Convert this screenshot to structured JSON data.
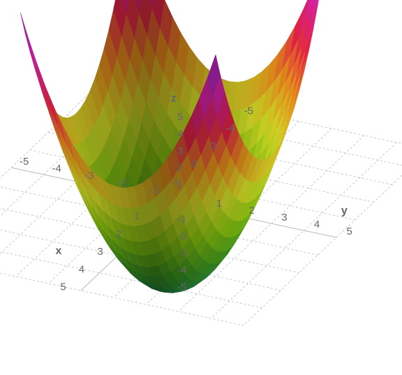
{
  "chart_data": {
    "type": "surface",
    "axis_labels": {
      "x": "x",
      "y": "y",
      "z": "z"
    },
    "x_ticks": [
      "-5",
      "-4",
      "-3",
      "-2",
      "-1",
      "1",
      "2",
      "3",
      "4",
      "5"
    ],
    "y_ticks": [
      "-5",
      "-4",
      "-3",
      "-2",
      "-1",
      "1",
      "2",
      "3",
      "4",
      "5"
    ],
    "z_ticks": [
      "-5",
      "-4",
      "-3",
      "-2",
      "-1",
      "1",
      "2",
      "3",
      "4",
      "5"
    ],
    "xlim": [
      -5,
      5
    ],
    "ylim": [
      -5,
      5
    ],
    "zlim": [
      -5,
      5
    ],
    "surface_domain": {
      "x": [
        -3,
        3
      ],
      "y": [
        -3,
        3
      ]
    },
    "grid": true,
    "colorscale": [
      "#1a7a48",
      "#3e9a1e",
      "#8ed010",
      "#e6ee2a",
      "#ff9c1e",
      "#ff2450",
      "#f028c8",
      "#9a30e0"
    ]
  }
}
